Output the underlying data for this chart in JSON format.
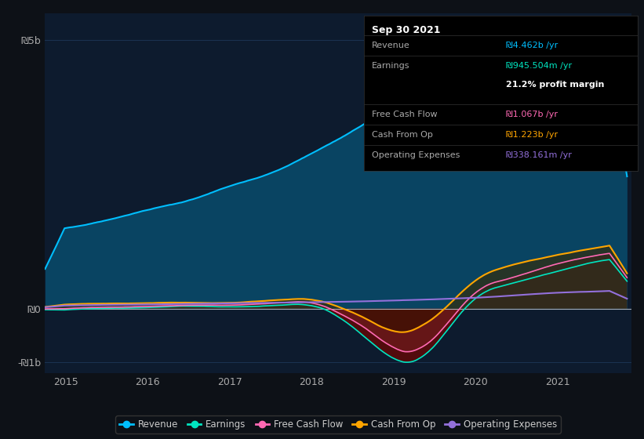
{
  "background_color": "#0d1117",
  "plot_bg_color": "#0d1b2e",
  "ylim": [
    -1200000000.0,
    5500000000.0
  ],
  "colors": {
    "revenue": "#00bfff",
    "earnings": "#00e5c0",
    "free_cash_flow": "#ff69b4",
    "cash_from_op": "#ffa500",
    "operating_expenses": "#9370db"
  },
  "legend_items": [
    "Revenue",
    "Earnings",
    "Free Cash Flow",
    "Cash From Op",
    "Operating Expenses"
  ],
  "tooltip": {
    "date": "Sep 30 2021",
    "revenue_label": "Revenue",
    "revenue_value": "₪4.462b /yr",
    "earnings_label": "Earnings",
    "earnings_value": "₪945.504m /yr",
    "profit_margin": "21.2% profit margin",
    "fcf_label": "Free Cash Flow",
    "fcf_value": "₪1.067b /yr",
    "cashop_label": "Cash From Op",
    "cashop_value": "₪1.223b /yr",
    "opex_label": "Operating Expenses",
    "opex_value": "₪338.161m /yr"
  }
}
